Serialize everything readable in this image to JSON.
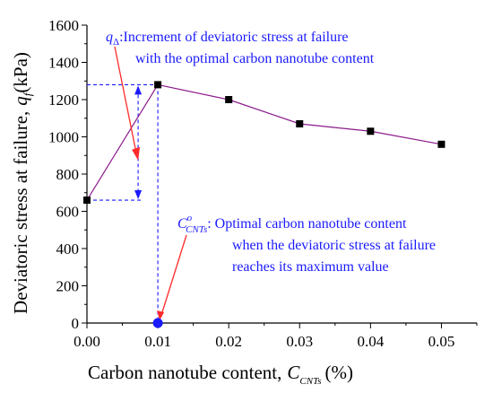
{
  "chart_data": {
    "type": "line",
    "x": [
      0.0,
      0.01,
      0.02,
      0.03,
      0.04,
      0.05
    ],
    "series": [
      {
        "values": [
          660,
          1280,
          1200,
          1070,
          1030,
          960
        ]
      }
    ],
    "xlim": [
      0.0,
      0.055
    ],
    "ylim": [
      0,
      1600
    ],
    "x_ticks": [
      "0.00",
      "0.01",
      "0.02",
      "0.03",
      "0.04",
      "0.05"
    ],
    "y_ticks": [
      "0",
      "200",
      "400",
      "600",
      "800",
      "1000",
      "1200",
      "1400",
      "1600"
    ],
    "xlabel": "Carbon nanotube content,",
    "xlabel_symbol": "C",
    "xlabel_subscript": "CNTs",
    "xlabel_unit": "(%)",
    "ylabel": "Deviatoric stress at failure,",
    "ylabel_symbol": "q",
    "ylabel_subscript": "f",
    "ylabel_unit": "(kPa)",
    "grid": false,
    "optimal_point": {
      "x": 0.01,
      "y": 0
    },
    "annotations": {
      "q_symbol": "q",
      "q_subscript": "Δ",
      "q_line1": ":Increment of deviatoric stress at failure",
      "q_line2": "with the optimal carbon nanotube content",
      "c_symbol": "C",
      "c_superscript": "o",
      "c_subscript": "CNTs",
      "c_line1": ": Optimal carbon nanotube content",
      "c_line2": "when the deviatoric stress at failure",
      "c_line3": "reaches its maximum value"
    },
    "colors": {
      "line": "#8b1a8b",
      "annotation": "#1a1aff",
      "arrow": "#ff2a2a",
      "optimal_marker": "#1a1aff"
    }
  }
}
